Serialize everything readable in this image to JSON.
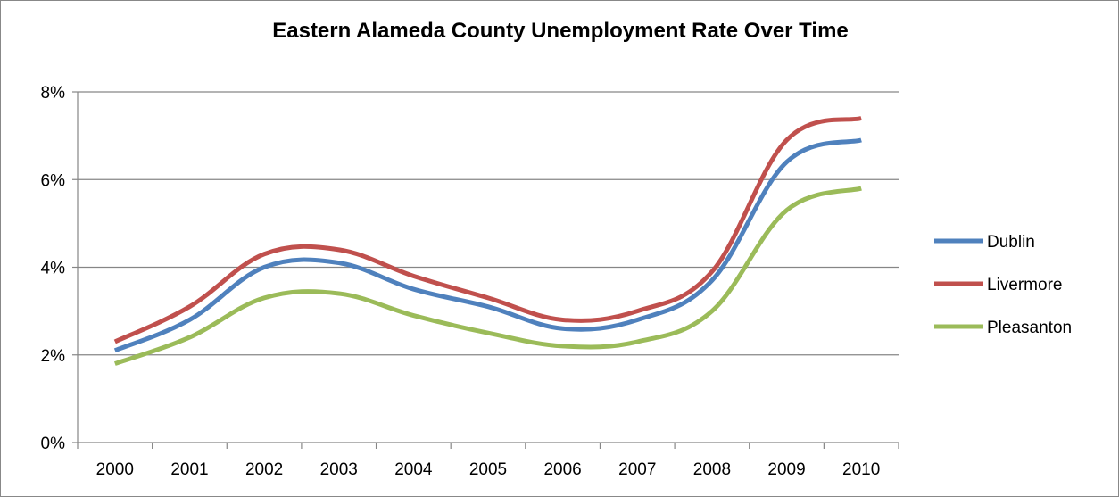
{
  "chart_data": {
    "type": "line",
    "title": "Eastern Alameda County Unemployment Rate Over Time",
    "xlabel": "",
    "ylabel": "",
    "categories": [
      "2000",
      "2001",
      "2002",
      "2003",
      "2004",
      "2005",
      "2006",
      "2007",
      "2008",
      "2009",
      "2010"
    ],
    "ylim": [
      0,
      8
    ],
    "yticks": [
      0,
      2,
      4,
      6,
      8
    ],
    "ytick_labels": [
      "0%",
      "2%",
      "4%",
      "6%",
      "8%"
    ],
    "grid": true,
    "legend_position": "right",
    "series": [
      {
        "name": "Dublin",
        "color": "#4F81BD",
        "values": [
          2.1,
          2.8,
          4.0,
          4.1,
          3.5,
          3.1,
          2.6,
          2.8,
          3.7,
          6.4,
          6.9
        ]
      },
      {
        "name": "Livermore",
        "color": "#C0504D",
        "values": [
          2.3,
          3.1,
          4.3,
          4.4,
          3.8,
          3.3,
          2.8,
          3.0,
          3.9,
          6.9,
          7.4
        ]
      },
      {
        "name": "Pleasanton",
        "color": "#9BBB59",
        "values": [
          1.8,
          2.4,
          3.3,
          3.4,
          2.9,
          2.5,
          2.2,
          2.3,
          3.0,
          5.3,
          5.8
        ]
      }
    ]
  }
}
